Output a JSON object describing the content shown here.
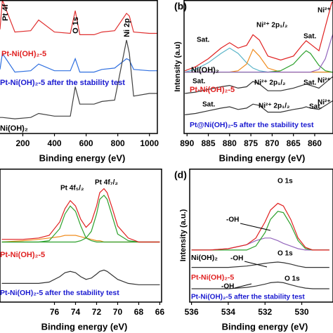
{
  "chart_data": [
    {
      "type": "line",
      "xlabel": "Binding energy (eV)",
      "xlim": [
        0,
        1050
      ],
      "xticks": [
        200,
        400,
        600,
        800,
        1000
      ],
      "ylim": [
        0,
        100
      ],
      "series": [
        {
          "color": "#e03030",
          "x": [
            56,
            71,
            150,
            250,
            300,
            400,
            500,
            531,
            560,
            650,
            700,
            780,
            855,
            873,
            900,
            1000,
            1050
          ],
          "values": [
            78,
            100,
            76,
            77,
            85,
            76,
            75,
            92,
            74,
            74,
            76,
            77,
            90,
            88,
            76,
            75,
            75
          ]
        },
        {
          "color": "#3070e0",
          "x": [
            56,
            71,
            150,
            250,
            300,
            400,
            500,
            531,
            560,
            650,
            700,
            780,
            855,
            873,
            900,
            1000,
            1050
          ],
          "values": [
            48,
            60,
            46,
            47,
            52,
            47,
            47,
            56,
            46,
            46,
            48,
            49,
            56,
            55,
            48,
            47,
            47
          ]
        },
        {
          "color": "#404040",
          "x": [
            56,
            71,
            150,
            250,
            300,
            400,
            500,
            531,
            560,
            650,
            700,
            780,
            855,
            873,
            900,
            1000,
            1050
          ],
          "values": [
            12,
            12,
            11,
            12,
            15,
            13,
            13,
            35,
            22,
            22,
            24,
            25,
            70,
            60,
            28,
            30,
            30
          ]
        }
      ],
      "annotations": [
        {
          "text": "Pt 4f",
          "color": "#000"
        },
        {
          "text": "O 1s",
          "color": "#000"
        },
        {
          "text": "Ni 2p",
          "color": "#000"
        },
        {
          "text": "Pt-Ni(OH)₂-5",
          "color": "#e02020"
        },
        {
          "text": "Pt-Ni(OH)₂-5 after the stability test",
          "color": "#1a1ad0"
        },
        {
          "text": "Ni(OH)₂",
          "color": "#000"
        }
      ]
    },
    {
      "type": "line",
      "panel": "(b)",
      "xlabel": "Binding energy (eV)",
      "ylabel": "Intensity (a.u)",
      "xlim": [
        890.7,
        855.7
      ],
      "xticks": [
        890,
        885,
        880,
        875,
        870,
        865,
        860
      ],
      "ylim": [
        0,
        100
      ],
      "series": [
        {
          "color": "#5ab4c8",
          "x": [
            890.5,
            888,
            885,
            882,
            880,
            878,
            876,
            874.5,
            873,
            871,
            868,
            865,
            863,
            862,
            861,
            859,
            857.5,
            856,
            855
          ],
          "values": [
            46,
            48,
            53,
            60,
            64,
            60,
            53,
            49,
            47,
            46,
            46,
            46,
            46,
            46,
            46,
            46,
            46,
            46,
            46
          ]
        },
        {
          "color": "#f08c1e",
          "x": [
            890.5,
            888,
            885,
            882,
            880,
            878,
            876,
            874.5,
            873,
            871,
            868,
            865,
            863,
            862,
            861,
            859,
            857.5,
            856,
            855
          ],
          "values": [
            46,
            46,
            46,
            46,
            46,
            47,
            52,
            63,
            58,
            49,
            46,
            46,
            46,
            46,
            46,
            46,
            46,
            46,
            46
          ]
        },
        {
          "color": "#2ca02c",
          "x": [
            890.5,
            888,
            885,
            882,
            880,
            878,
            876,
            874.5,
            873,
            871,
            868,
            865,
            863,
            862,
            861,
            859,
            857.5,
            856,
            855
          ],
          "values": [
            46,
            46,
            46,
            46,
            46,
            46,
            46,
            46,
            46,
            46,
            47,
            52,
            59,
            62,
            60,
            51,
            47,
            46,
            46
          ]
        },
        {
          "color": "#9467bd",
          "x": [
            890.5,
            888,
            885,
            882,
            880,
            878,
            876,
            874.5,
            873,
            871,
            868,
            865,
            863,
            862,
            861,
            859,
            857.5,
            856,
            855
          ],
          "values": [
            46,
            46,
            46,
            46,
            46,
            46,
            46,
            46,
            46,
            46,
            46,
            46,
            46,
            46,
            46,
            48,
            56,
            72,
            80
          ]
        },
        {
          "color": "#e02020",
          "x": [
            890.5,
            888,
            885,
            882,
            880,
            878,
            876,
            874.5,
            873,
            871,
            868,
            865,
            863,
            862,
            861,
            859,
            857.5,
            856,
            855
          ],
          "values": [
            47,
            50,
            56,
            64,
            68,
            64,
            66,
            74,
            70,
            58,
            55,
            58,
            66,
            69.5,
            67,
            62,
            80,
            98,
            100
          ]
        },
        {
          "color": "#333333",
          "x": [
            890.5,
            888,
            885,
            882,
            880,
            878,
            876,
            874.5,
            873,
            871,
            868,
            865,
            863,
            862,
            861,
            859,
            857.5,
            856,
            855
          ],
          "values": [
            30,
            31,
            33,
            35,
            36,
            34,
            35,
            39,
            37,
            32,
            32,
            34,
            36,
            37,
            36,
            34,
            38,
            42,
            44
          ]
        },
        {
          "color": "#333333",
          "x": [
            890.5,
            888,
            885,
            882,
            880,
            878,
            876,
            874.5,
            873,
            871,
            868,
            865,
            863,
            862,
            861,
            859,
            857.5,
            856,
            855
          ],
          "values": [
            14,
            15,
            17,
            19,
            20,
            18,
            19,
            22,
            21,
            16,
            16,
            18,
            19,
            20,
            19,
            18,
            21,
            24,
            26
          ]
        }
      ],
      "annotations": [
        {
          "text": "Sat.",
          "color": "#000"
        },
        {
          "text": "Ni²⁺ 2p₁/₂",
          "color": "#000"
        },
        {
          "text": "Sat.",
          "color": "#000"
        },
        {
          "text": "Ni²⁺ 2",
          "color": "#000"
        },
        {
          "text": "Ni(OH)₂",
          "color": "#000"
        },
        {
          "text": "Sat.",
          "color": "#000"
        },
        {
          "text": "Ni²⁺ 2p₁/₂",
          "color": "#000"
        },
        {
          "text": "Sat.",
          "color": "#000"
        },
        {
          "text": "Ni²⁺",
          "color": "#000"
        },
        {
          "text": "Pt-Ni(OH)₂-5",
          "color": "#e02020"
        },
        {
          "text": "Sat.",
          "color": "#000"
        },
        {
          "text": "Ni²⁺ 2p₁/₂",
          "color": "#000"
        },
        {
          "text": "Sat.",
          "color": "#000"
        },
        {
          "text": "Ni²⁺",
          "color": "#000"
        },
        {
          "text": "Pt@Ni(OH)₂-5 after the stability test",
          "color": "#1a1ad0"
        }
      ]
    },
    {
      "type": "line",
      "xlabel": "Binding energy (eV)",
      "xlim": [
        81.17,
        65.83
      ],
      "xticks": [
        76,
        74,
        72,
        70,
        68,
        66
      ],
      "ylim": [
        0,
        100
      ],
      "series": [
        {
          "color": "#f08c1e",
          "x": [
            81,
            79,
            77.5,
            76.5,
            75.5,
            75,
            74.5,
            74,
            73.5,
            73,
            72.5,
            72,
            71.7,
            71.3,
            71,
            70.5,
            70,
            69,
            68,
            67,
            66
          ],
          "values": [
            45,
            46,
            47,
            48,
            49,
            50,
            50,
            50,
            49,
            48,
            47,
            46,
            46,
            45,
            45,
            45,
            45,
            45,
            45,
            45,
            45
          ]
        },
        {
          "color": "#2ca02c",
          "x": [
            81,
            79,
            77.5,
            76.5,
            75.5,
            75,
            74.5,
            74,
            73.5,
            73,
            72.5,
            72,
            71.7,
            71.3,
            71,
            70.5,
            70,
            69,
            68,
            67,
            66
          ],
          "values": [
            45,
            45,
            45,
            46,
            55,
            66,
            72,
            68,
            57,
            48,
            46,
            45,
            45,
            45,
            45,
            45,
            45,
            45,
            45,
            45,
            45
          ]
        },
        {
          "color": "#2ca02c",
          "x": [
            81,
            79,
            77.5,
            76.5,
            75.5,
            75,
            74.5,
            74,
            73.5,
            73,
            72.5,
            72,
            71.7,
            71.3,
            71,
            70.5,
            70,
            69,
            68,
            67,
            66
          ],
          "values": [
            45,
            45,
            45,
            45,
            45,
            45,
            45,
            45,
            46,
            48,
            53,
            66,
            77,
            80,
            77,
            64,
            51,
            46,
            45,
            45,
            45
          ]
        },
        {
          "color": "#e02020",
          "x": [
            81,
            79,
            77.5,
            76.5,
            75.5,
            75,
            74.5,
            74,
            73.5,
            73,
            72.5,
            72,
            71.7,
            71.3,
            71,
            70.5,
            70,
            69,
            68,
            67,
            66
          ],
          "values": [
            47,
            47,
            48,
            50,
            60,
            70,
            76,
            72,
            62,
            56,
            60,
            72,
            82,
            85,
            82,
            70,
            57,
            48,
            45,
            45,
            45
          ]
        },
        {
          "color": "#333333",
          "x": [
            81,
            79,
            77.5,
            76.5,
            75.5,
            75,
            74.5,
            74,
            73.5,
            73,
            72.5,
            72,
            71.7,
            71.3,
            71,
            70.5,
            70,
            69,
            68,
            67,
            66
          ],
          "values": [
            14,
            14,
            14,
            15,
            19,
            22,
            23,
            22,
            19,
            17,
            18,
            21,
            23,
            24,
            23,
            20,
            17,
            14,
            13,
            13,
            13
          ]
        }
      ],
      "annotations": [
        {
          "text": "Pt 4f₅/₂",
          "color": "#000"
        },
        {
          "text": "Pt 4f₇/₂",
          "color": "#000"
        },
        {
          "text": "Pt-Ni(OH)₂-5",
          "color": "#e02020"
        },
        {
          "text": "Pt-Ni(OH)₂-5 after the stability test",
          "color": "#1a1ad0"
        }
      ]
    },
    {
      "type": "line",
      "panel": "(d)",
      "xlabel": "Binding energy (eV)",
      "ylabel": "Intensity (a.u.)",
      "xlim": [
        536.1,
        528.3
      ],
      "xticks": [
        536,
        534,
        532,
        530
      ],
      "ylim": [
        0,
        100
      ],
      "series": [
        {
          "color": "#9467bd",
          "x": [
            536,
            535,
            534,
            533,
            532.5,
            532,
            531.7,
            531.3,
            531,
            530.6,
            530.2,
            529.8,
            529.4,
            529,
            528.5
          ],
          "values": [
            39,
            39,
            40,
            43,
            46,
            48,
            48,
            46,
            44,
            42,
            40,
            39,
            39,
            39,
            39
          ]
        },
        {
          "color": "#2ca02c",
          "x": [
            536,
            535,
            534,
            533,
            532.5,
            532,
            531.7,
            531.3,
            531,
            530.6,
            530.2,
            529.8,
            529.4,
            529,
            528.5
          ],
          "values": [
            39,
            39,
            39,
            39,
            42,
            52,
            62,
            68,
            67,
            58,
            46,
            40,
            39,
            39,
            39
          ]
        },
        {
          "color": "#e02020",
          "x": [
            536,
            535,
            534,
            533,
            532.5,
            532,
            531.7,
            531.3,
            531,
            530.6,
            530.2,
            529.8,
            529.4,
            529,
            528.5
          ],
          "values": [
            39,
            39,
            40,
            43,
            48,
            60,
            69,
            74,
            72,
            62,
            48,
            41,
            39,
            39,
            39
          ]
        },
        {
          "color": "#333333",
          "x": [
            536,
            535,
            534,
            533,
            532.5,
            532,
            531.7,
            531.3,
            531,
            530.6,
            530.2,
            529.8,
            529.4,
            529,
            528.5
          ],
          "values": [
            26,
            26,
            26,
            27,
            28,
            29,
            29.5,
            30,
            29.5,
            28.5,
            27,
            26,
            26,
            26,
            26
          ]
        },
        {
          "color": "#333333",
          "x": [
            536,
            535,
            534,
            533,
            532.5,
            532,
            531.7,
            531.3,
            531,
            530.6,
            530.2,
            529.8,
            529.4,
            529,
            528.5
          ],
          "values": [
            10,
            10,
            10,
            11,
            12,
            13.5,
            14.5,
            15,
            14.5,
            13,
            11.5,
            10.5,
            10,
            10,
            10
          ]
        }
      ],
      "annotations": [
        {
          "text": "O 1s",
          "color": "#000"
        },
        {
          "text": "-OH",
          "color": "#000"
        },
        {
          "text": "Ni(OH)₂",
          "color": "#000"
        },
        {
          "text": "-OH",
          "color": "#000"
        },
        {
          "text": "O 1s",
          "color": "#000"
        },
        {
          "text": "Pt-Ni(OH)₂-5",
          "color": "#e02020"
        },
        {
          "text": "-OH",
          "color": "#000"
        },
        {
          "text": "O 1s",
          "color": "#000"
        },
        {
          "text": "Pt-Ni(OH)₂-5 after the stability test",
          "color": "#1a1ad0"
        }
      ]
    }
  ]
}
